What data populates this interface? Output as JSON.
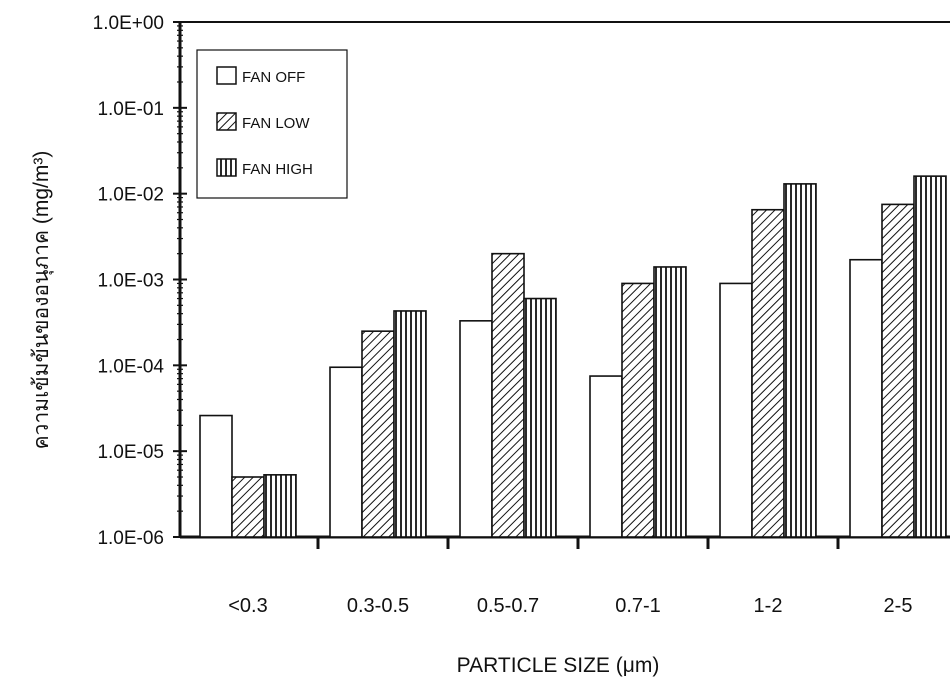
{
  "chart_data": {
    "type": "bar",
    "y_scale": "log",
    "ylim": [
      1e-06,
      1
    ],
    "y_ticks": [
      "1.0E-06",
      "1.0E-05",
      "1.0E-04",
      "1.0E-03",
      "1.0E-02",
      "1.0E-01",
      "1.0E+00"
    ],
    "xlabel": "PARTICLE SIZE (μm)",
    "ylabel": "ความเข้มข้นของอนุภาค (mg/m³)",
    "categories": [
      "<0.3",
      "0.3-0.5",
      "0.5-0.7",
      "0.7-1",
      "1-2",
      "2-5"
    ],
    "series": [
      {
        "name": "FAN OFF",
        "pattern": "none",
        "values": [
          2.6e-05,
          9.5e-05,
          0.00033,
          7.5e-05,
          0.0009,
          0.0017
        ]
      },
      {
        "name": "FAN LOW",
        "pattern": "diagonal",
        "values": [
          5e-06,
          0.00025,
          0.002,
          0.0009,
          0.0065,
          0.0075
        ]
      },
      {
        "name": "FAN HIGH",
        "pattern": "vertical",
        "values": [
          5.3e-06,
          0.00043,
          0.0006,
          0.0014,
          0.013,
          0.016
        ]
      }
    ],
    "legend_position": "top-left",
    "grid": false,
    "colors": {
      "bar_fill": "#ffffff",
      "stroke": "#111111"
    }
  }
}
